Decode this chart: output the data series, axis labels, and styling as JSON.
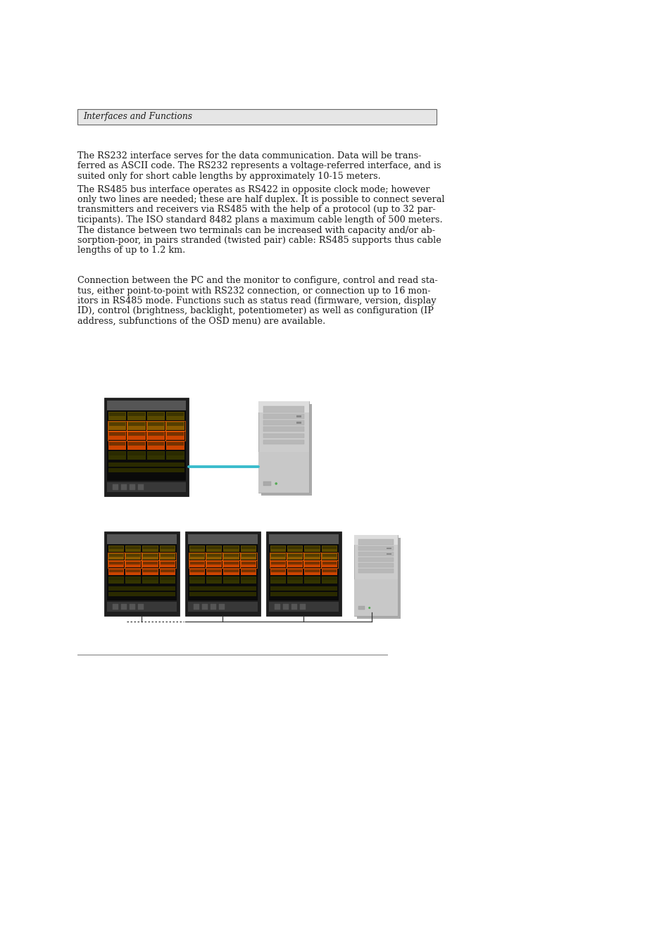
{
  "bg_color": "#ffffff",
  "header_box_text": "Interfaces and Functions",
  "text_color": "#1a1a1a",
  "text_fontsize": 9.2,
  "header_fontsize": 8.8,
  "paragraph1": "The RS232 interface serves for the data communication. Data will be trans-\nferred as ASCII code. The RS232 represents a voltage-referred interface, and is\nsuited only for short cable lengths by approximately 10-15 meters.",
  "paragraph2": "The RS485 bus interface operates as RS422 in opposite clock mode; however\nonly two lines are needed; these are half duplex. It is possible to connect several\ntransmitters and receivers via RS485 with the help of a protocol (up to 32 par-\nticipants). The ISO standard 8482 plans a maximum cable length of 500 meters.\nThe distance between two terminals can be increased with capacity and/or ab-\nsorption-poor, in pairs stranded (twisted pair) cable: RS485 supports thus cable\nlengths of up to 1.2 km.",
  "paragraph3": "Connection between the PC and the monitor to configure, control and read sta-\ntus, either point-to-point with RS232 connection, or connection up to 16 mon-\nitors in RS485 mode. Functions such as status read (firmware, version, display\nID), control (brightness, backlight, potentiometer) as well as configuration (IP\naddress, subfunctions of the OSD menu) are available."
}
